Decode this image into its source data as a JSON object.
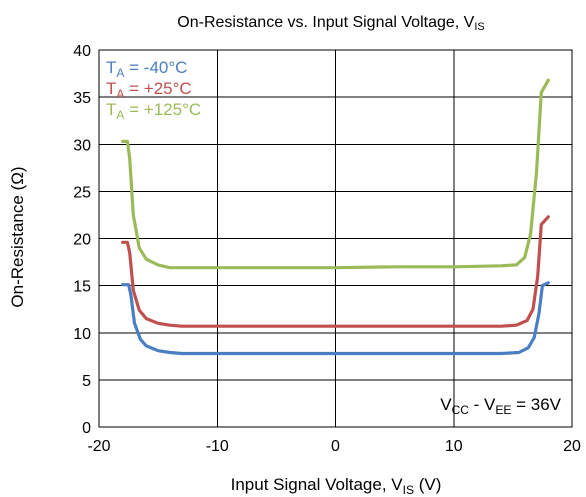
{
  "chart_data": {
    "type": "line",
    "title": {
      "main": "On-Resistance vs. Input Signal Voltage, V",
      "sub": "IS"
    },
    "xlabel": {
      "main": "Input Signal Voltage, V",
      "sub": "IS",
      "tail": " (V)"
    },
    "ylabel": "On-Resistance (Ω)",
    "xlim": [
      -20,
      20
    ],
    "ylim": [
      0,
      40
    ],
    "xticks": [
      -20,
      -10,
      0,
      10,
      20
    ],
    "yticks": [
      0,
      5,
      10,
      15,
      20,
      25,
      30,
      35,
      40
    ],
    "xtick_labels": [
      "-20",
      "-10",
      "0",
      "10",
      "20"
    ],
    "ytick_labels": [
      "0",
      "5",
      "10",
      "15",
      "20",
      "25",
      "30",
      "35",
      "40"
    ],
    "grid": true,
    "legend_position": "top-left",
    "series": [
      {
        "name": "T_A = -40°C",
        "label_main": "T",
        "label_sub": "A",
        "label_tail": " = -40°C",
        "color": "#4a7ec4",
        "points": [
          [
            -18,
            15.1
          ],
          [
            -17.5,
            15.1
          ],
          [
            -17.3,
            14.0
          ],
          [
            -17.0,
            11.0
          ],
          [
            -16.5,
            9.3
          ],
          [
            -16.0,
            8.6
          ],
          [
            -15.0,
            8.1
          ],
          [
            -14.0,
            7.9
          ],
          [
            -13.0,
            7.8
          ],
          [
            -5,
            7.8
          ],
          [
            0,
            7.8
          ],
          [
            5,
            7.8
          ],
          [
            10,
            7.8
          ],
          [
            14,
            7.8
          ],
          [
            15.5,
            7.9
          ],
          [
            16.3,
            8.4
          ],
          [
            16.8,
            9.5
          ],
          [
            17.2,
            12.0
          ],
          [
            17.5,
            15.0
          ],
          [
            18,
            15.3
          ]
        ]
      },
      {
        "name": "T_A = +25°C",
        "label_main": "T",
        "label_sub": "A",
        "label_tail": " = +25°C",
        "color": "#c0504d",
        "points": [
          [
            -18,
            19.6
          ],
          [
            -17.6,
            19.6
          ],
          [
            -17.4,
            18.5
          ],
          [
            -17.1,
            14.5
          ],
          [
            -16.6,
            12.4
          ],
          [
            -16.0,
            11.5
          ],
          [
            -15.0,
            11.0
          ],
          [
            -14.0,
            10.8
          ],
          [
            -13.0,
            10.7
          ],
          [
            -5,
            10.7
          ],
          [
            0,
            10.7
          ],
          [
            5,
            10.7
          ],
          [
            10,
            10.7
          ],
          [
            14,
            10.7
          ],
          [
            15.3,
            10.8
          ],
          [
            16.2,
            11.3
          ],
          [
            16.7,
            12.5
          ],
          [
            17.1,
            16.0
          ],
          [
            17.4,
            21.5
          ],
          [
            18,
            22.3
          ]
        ]
      },
      {
        "name": "T_A = +125°C",
        "label_main": "T",
        "label_sub": "A",
        "label_tail": " = +125°C",
        "color": "#9bbb59",
        "points": [
          [
            -18,
            30.3
          ],
          [
            -17.6,
            30.3
          ],
          [
            -17.4,
            28.5
          ],
          [
            -17.1,
            22.5
          ],
          [
            -16.6,
            19.0
          ],
          [
            -16.0,
            17.8
          ],
          [
            -15.0,
            17.2
          ],
          [
            -14.0,
            16.9
          ],
          [
            -13.0,
            16.9
          ],
          [
            -5,
            16.9
          ],
          [
            0,
            16.9
          ],
          [
            5,
            17.0
          ],
          [
            10,
            17.0
          ],
          [
            14,
            17.1
          ],
          [
            15.3,
            17.2
          ],
          [
            16.0,
            18.0
          ],
          [
            16.5,
            20.5
          ],
          [
            17.0,
            27.0
          ],
          [
            17.4,
            35.5
          ],
          [
            18,
            36.8
          ]
        ]
      }
    ],
    "annotation": {
      "part1_main": "V",
      "part1_sub": "CC",
      "mid": " - V",
      "part2_sub": "EE",
      "tail": " = 36V"
    }
  }
}
